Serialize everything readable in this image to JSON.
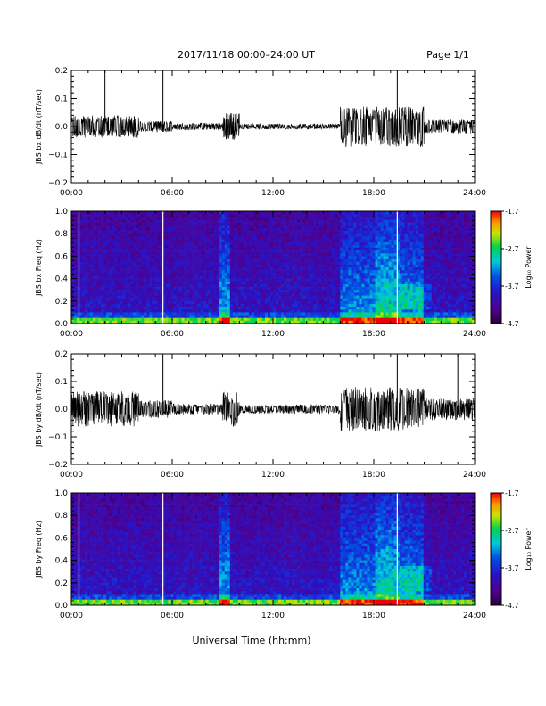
{
  "header": {
    "title": "2017/11/18  00:00–24:00 UT",
    "page": "Page 1/1"
  },
  "chart_data": [
    {
      "type": "line",
      "ylabel": "JBS bx dB/dt (nT/sec)",
      "xlim": [
        0,
        24
      ],
      "ylim": [
        -0.2,
        0.2
      ],
      "yticks": [
        "0.2",
        "0.1",
        "0.0",
        "−0.1",
        "−0.2"
      ],
      "xticks": [
        "00:00",
        "06:00",
        "12:00",
        "18:00",
        "24:00"
      ],
      "spikes_hours": [
        0.45,
        2.0,
        5.45,
        19.4
      ],
      "activity": [
        {
          "hours": [
            0,
            4
          ],
          "amp": 0.025
        },
        {
          "hours": [
            4,
            6
          ],
          "amp": 0.012
        },
        {
          "hours": [
            6,
            9
          ],
          "amp": 0.008
        },
        {
          "hours": [
            9,
            10
          ],
          "amp": 0.03
        },
        {
          "hours": [
            10,
            16
          ],
          "amp": 0.006
        },
        {
          "hours": [
            16,
            21
          ],
          "amp": 0.045
        },
        {
          "hours": [
            21,
            24
          ],
          "amp": 0.015
        }
      ]
    },
    {
      "type": "heatmap",
      "ylabel": "JBS bx Freq (Hz)",
      "xlim": [
        0,
        24
      ],
      "ylim": [
        0.0,
        1.0
      ],
      "yticks": [
        "1.0",
        "0.8",
        "0.6",
        "0.4",
        "0.2",
        "0.0"
      ],
      "xticks": [
        "00:00",
        "06:00",
        "12:00",
        "18:00",
        "24:00"
      ],
      "colorbar": {
        "label": "Log₁₀ Power",
        "ticks": [
          "-1.7",
          "-2.7",
          "-3.7",
          "-4.7"
        ],
        "range": [
          -4.7,
          -1.7
        ]
      },
      "gaps_hours": [
        0.45,
        5.45,
        19.4
      ]
    },
    {
      "type": "line",
      "ylabel": "JBS by dB/dt (nT/sec)",
      "xlim": [
        0,
        24
      ],
      "ylim": [
        -0.2,
        0.2
      ],
      "yticks": [
        "0.2",
        "0.1",
        "0.0",
        "−0.1",
        "−0.2"
      ],
      "xticks": [
        "00:00",
        "06:00",
        "12:00",
        "18:00",
        "24:00"
      ],
      "spikes_hours": [
        5.45,
        19.4,
        23.0
      ],
      "activity": [
        {
          "hours": [
            0,
            4
          ],
          "amp": 0.04
        },
        {
          "hours": [
            4,
            6
          ],
          "amp": 0.02
        },
        {
          "hours": [
            6,
            9
          ],
          "amp": 0.012
        },
        {
          "hours": [
            9,
            10
          ],
          "amp": 0.04
        },
        {
          "hours": [
            10,
            16
          ],
          "amp": 0.01
        },
        {
          "hours": [
            16,
            21
          ],
          "amp": 0.05
        },
        {
          "hours": [
            21,
            24
          ],
          "amp": 0.025
        }
      ]
    },
    {
      "type": "heatmap",
      "ylabel": "JBS by Freq (Hz)",
      "xlim": [
        0,
        24
      ],
      "ylim": [
        0.0,
        1.0
      ],
      "yticks": [
        "1.0",
        "0.8",
        "0.6",
        "0.4",
        "0.2",
        "0.0"
      ],
      "xticks": [
        "00:00",
        "06:00",
        "12:00",
        "18:00",
        "24:00"
      ],
      "colorbar": {
        "label": "Log₁₀ Power",
        "ticks": [
          "-1.7",
          "-2.7",
          "-3.7",
          "-4.7"
        ],
        "range": [
          -4.7,
          -1.7
        ]
      },
      "gaps_hours": [
        0.45,
        5.45,
        19.4
      ]
    }
  ],
  "xlabel": "Universal Time (hh:mm)"
}
